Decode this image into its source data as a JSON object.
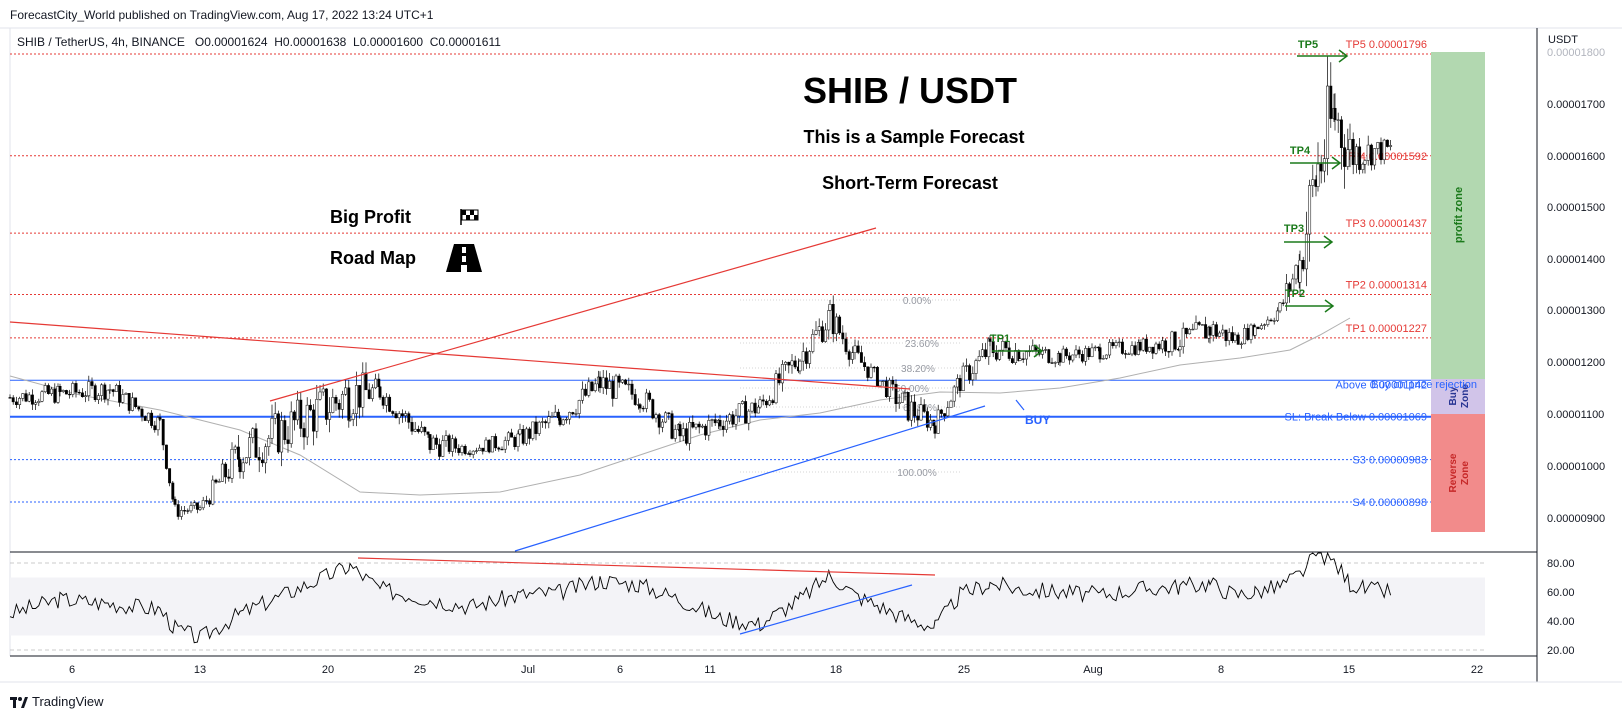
{
  "header": {
    "publisher": "ForecastCity_World published on TradingView.com, Aug 17, 2022 13:24 UTC+1",
    "symbol": "SHIB / TetherUS, 4h, BINANCE",
    "ohlc": {
      "o": "O0.00001624",
      "h": "H0.00001638",
      "l": "L0.00001600",
      "c": "C0.00001611"
    },
    "price_unit": "USDT"
  },
  "footer": {
    "brand": "TradingView"
  },
  "annotations": {
    "title": "SHIB / USDT",
    "sample": "This is a Sample Forecast",
    "short_term": "Short-Term Forecast",
    "big_profit": "Big Profit",
    "road_map": "Road Map",
    "buy": "BUY"
  },
  "chart_data": {
    "type": "line",
    "description_series": "candlestick price 4h",
    "y_price_range": [
      8.5e-06,
      1.83e-05
    ],
    "x_ticks": [
      "6",
      "Jul",
      "6",
      "11",
      "18",
      "25",
      "Aug",
      "8",
      "15",
      "22",
      "13",
      "20",
      "25"
    ],
    "x_tick_order": [
      "6",
      "13",
      "20",
      "25",
      "Jul",
      "6",
      "11",
      "18",
      "25",
      "Aug",
      "8",
      "15",
      "22"
    ],
    "y_ticks": [
      "0.00001800",
      "0.00001700",
      "0.00001600",
      "0.00001500",
      "0.00001400",
      "0.00001300",
      "0.00001200",
      "0.00001100",
      "0.00001000",
      "0.00000900"
    ],
    "rsi_ticks": [
      "80.00",
      "60.00",
      "40.00",
      "20.00"
    ],
    "levels": [
      {
        "name": "TP5",
        "label": "TP5 0.00001796",
        "value": 1.796e-05,
        "color": "#e53935"
      },
      {
        "name": "TP4",
        "label": "TP4 0.00001592",
        "value": 1.592e-05,
        "color": "#e53935"
      },
      {
        "name": "TP3",
        "label": "TP3 0.00001437",
        "value": 1.437e-05,
        "color": "#e53935"
      },
      {
        "name": "TP2",
        "label": "TP2 0.00001314",
        "value": 1.314e-05,
        "color": "#e53935"
      },
      {
        "name": "TP1",
        "label": "TP1 0.00001227",
        "value": 1.227e-05,
        "color": "#e53935"
      },
      {
        "name": "Buy",
        "label": "Above 0.00001142",
        "value": 1.142e-05,
        "color": "#2962ff"
      },
      {
        "name": "SL",
        "label": "SL: Break Below 0.00001069",
        "value": 1.069e-05,
        "color": "#2962ff"
      },
      {
        "name": "S3",
        "label": "S3 0.00000983",
        "value": 9.83e-06,
        "color": "#2962ff"
      },
      {
        "name": "S4",
        "label": "S4 0.00000898",
        "value": 8.98e-06,
        "color": "#2962ff"
      }
    ],
    "buy_note": "Buy on price rejection",
    "fib_labels": [
      "0.00%",
      "23.60%",
      "38.20%",
      "50.00%",
      "61.80%",
      "100.00%"
    ],
    "zones": [
      {
        "label": "profit zone",
        "color": "#b2d8b0"
      },
      {
        "label": "Buy Zone",
        "color": "#d1c4e9"
      },
      {
        "label": "Reverse Zone",
        "color": "#f28b8b"
      }
    ],
    "tp_arrows": [
      "TP1",
      "TP2",
      "TP3",
      "TP4",
      "TP5"
    ],
    "price_path": [
      [
        1.13e-05,
        1.085e-05
      ],
      [
        1.14e-05,
        1.09e-05
      ],
      [
        1.15e-05,
        1.1e-05
      ],
      [
        1.08e-05,
        1.03e-05
      ],
      [
        9e-06,
        8.6e-06
      ],
      [
        9e-06,
        8.7e-06
      ],
      [
        1.05e-05,
        9.4e-06
      ],
      [
        1.18e-05,
        1.05e-05
      ],
      [
        1.15e-05,
        1.09e-05
      ],
      [
        1.05e-05,
        9.8e-06
      ],
      [
        1.02e-05,
        9.9e-06
      ],
      [
        1.05e-05,
        1e-05
      ],
      [
        1.1e-05,
        1.04e-05
      ],
      [
        1.17e-05,
        1.1e-05
      ],
      [
        1.14e-05,
        1.08e-05
      ],
      [
        1.06e-05,
        1e-05
      ],
      [
        1.09e-05,
        1.03e-05
      ],
      [
        1.12e-05,
        1.06e-05
      ],
      [
        1.23e-05,
        1.15e-05
      ],
      [
        1.31e-05,
        1.23e-05
      ],
      [
        1.22e-05,
        1.16e-05
      ],
      [
        1.16e-05,
        1.12e-05
      ],
      [
        1.13e-05,
        1.05e-05
      ],
      [
        1.08e-05,
        1.03e-05
      ],
      [
        1.17e-05,
        1.11e-05
      ],
      [
        1.24e-05,
        1.17e-05
      ],
      [
        1.23e-05,
        1.17e-05
      ],
      [
        1.21e-05,
        1.17e-05
      ],
      [
        1.22e-05,
        1.18e-05
      ],
      [
        1.23e-05,
        1.19e-05
      ],
      [
        1.25e-05,
        1.19e-05
      ],
      [
        1.28e-05,
        1.21e-05
      ],
      [
        1.25e-05,
        1.2e-05
      ],
      [
        1.26e-05,
        1.23e-05
      ],
      [
        1.31e-05,
        1.26e-05
      ],
      [
        1.45e-05,
        1.31e-05
      ],
      [
        1.72e-05,
        1.42e-05
      ],
      [
        1.79e-05,
        1.56e-05
      ],
      [
        1.68e-05,
        1.52e-05
      ],
      [
        1.64e-05,
        1.56e-05
      ],
      [
        1.63e-05,
        1.58e-05
      ]
    ],
    "rsi_path": [
      45,
      55,
      52,
      48,
      35,
      28,
      45,
      78,
      62,
      55,
      50,
      58,
      60,
      68,
      65,
      55,
      42,
      38,
      55,
      72,
      58,
      50,
      42,
      36,
      58,
      66,
      62,
      60,
      58,
      62,
      64,
      66,
      58,
      60,
      64,
      72,
      88,
      80,
      66,
      62,
      60
    ]
  }
}
